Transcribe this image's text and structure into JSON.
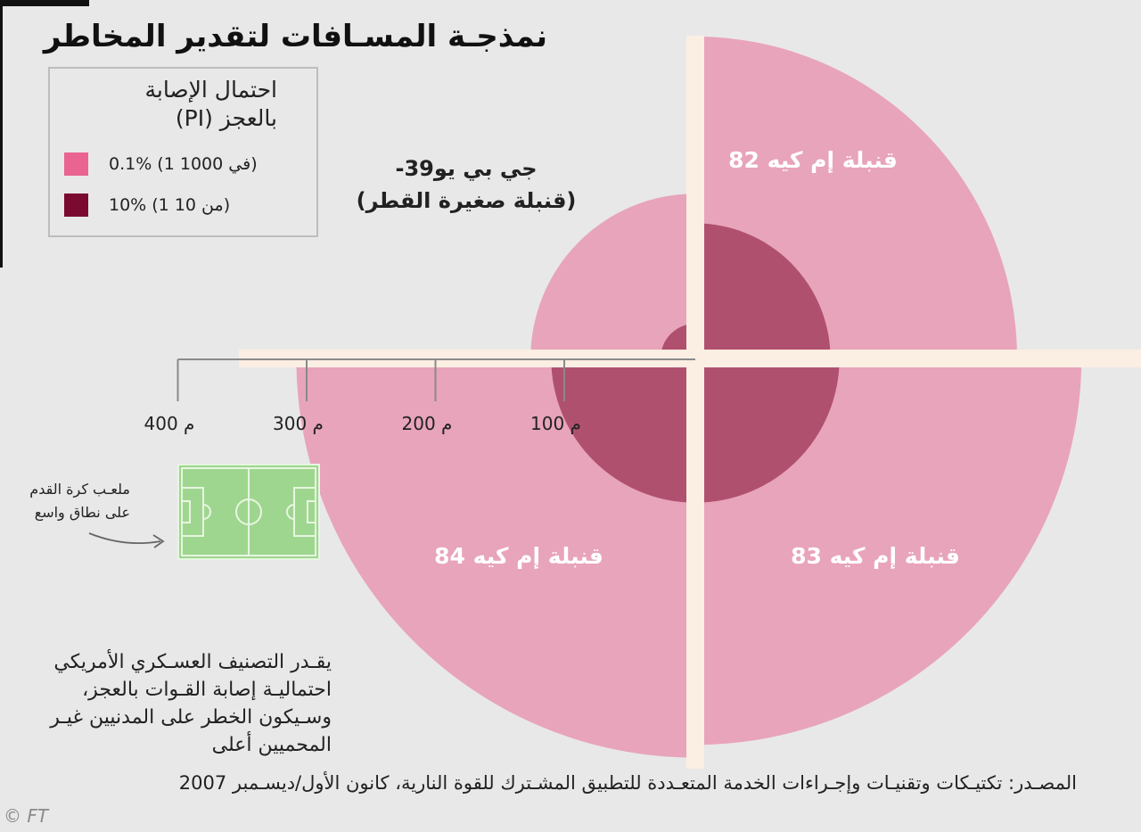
{
  "title": "نمذجـة المسـافات لتقدير المخاطر",
  "legend": {
    "title_line1": "احتمال الإصابة",
    "title_line2": "بالعجز (PI)",
    "items": [
      {
        "label": "0.1% (1 في 1000)",
        "color": "#e96490"
      },
      {
        "label": "10% (1 من 10)",
        "color": "#7b0a31"
      }
    ]
  },
  "chart_data": {
    "type": "diagram",
    "title": "نمذجـة المسـافات لتقدير المخاطر",
    "distance_unit": "م",
    "scale_ticks": [
      {
        "value": 100,
        "label": "100 م"
      },
      {
        "value": 200,
        "label": "200 م"
      },
      {
        "value": 300,
        "label": "300 م"
      },
      {
        "value": 400,
        "label": "400 م"
      }
    ],
    "munitions": [
      {
        "name": "جي بي يو39-",
        "subtitle": "(قنبلة صغيرة القطر)",
        "quadrant": "top-left",
        "radius_0_1_pct_m": 128,
        "radius_10_pct_m": 27
      },
      {
        "name": "قنبلة إم كيه 82",
        "quadrant": "top-right",
        "radius_0_1_pct_m": 250,
        "radius_10_pct_m": 105
      },
      {
        "name": "قنبلة إم كيه 83",
        "quadrant": "bottom-right",
        "radius_0_1_pct_m": 300,
        "radius_10_pct_m": 112
      },
      {
        "name": "قنبلة إم كيه 84",
        "quadrant": "bottom-left",
        "radius_0_1_pct_m": 310,
        "radius_10_pct_m": 112
      }
    ],
    "colors": {
      "outer": "#e8a4ba",
      "inner": "#b0506f",
      "divider": "#fbeee2"
    }
  },
  "football_pitch_label": "ملعـب كرة القدم على نطاق واسع",
  "note": "يقـدر التصنيف العسـكري الأمريكي احتماليـة إصابة القـوات بالعجز، وسـيكون الخطر على المدنيين غيـر المحميين أعلى",
  "source": "المصـدر: تكتيـكات وتقنيـات وإجـراءات الخدمة المتعـددة للتطبيق المشـترك للقوة النارية، كانون الأول/ديسـمبر 2007",
  "credit": "© FT"
}
